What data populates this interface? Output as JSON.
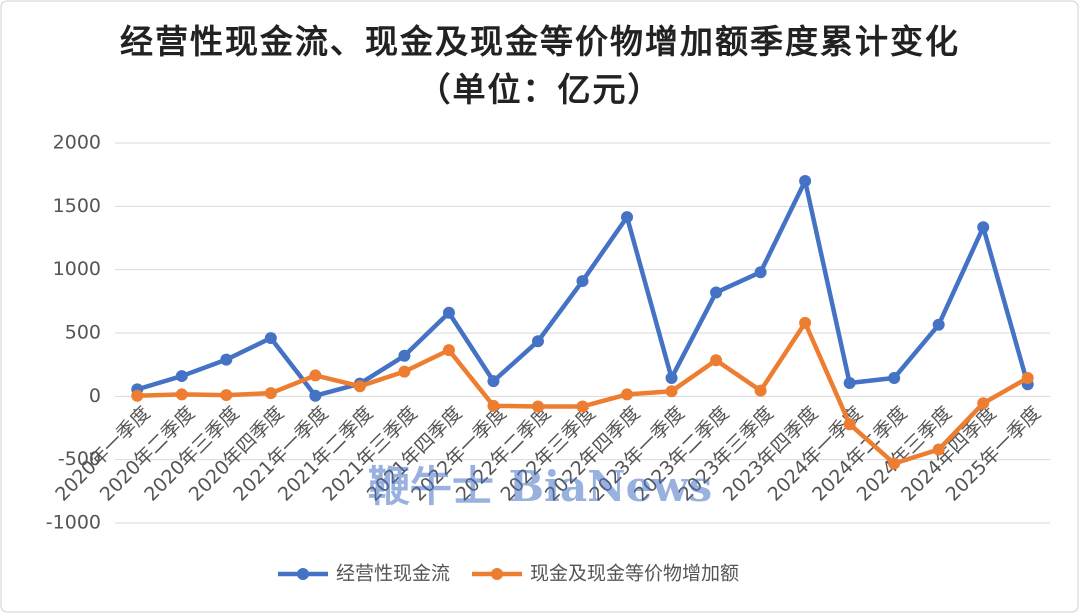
{
  "chart_data": {
    "type": "line",
    "title": "经营性现金流、现金及现金等价物增加额季度累计变化（单位：亿元）",
    "annotation": "鞭牛士 BiaNews",
    "categories": [
      "2020年一季度",
      "2020年二季度",
      "2020年三季度",
      "2020年四季度",
      "2021年一季度",
      "2021年二季度",
      "2021年三季度",
      "2021年四季度",
      "2022年一季度",
      "2022年二季度",
      "2022年三季度",
      "2022年四季度",
      "2023年一季度",
      "2023年二季度",
      "2023年三季度",
      "2023年四季度",
      "2024年一季度",
      "2024年二季度",
      "2024年三季度",
      "2024年四季度",
      "2025年一季度"
    ],
    "series": [
      {
        "name": "经营性现金流",
        "color": "#4472c4",
        "values": [
          55,
          160,
          290,
          460,
          5,
          100,
          320,
          660,
          120,
          435,
          910,
          1415,
          145,
          820,
          980,
          1700,
          105,
          145,
          565,
          1335,
          95
        ]
      },
      {
        "name": "现金及现金等价物增加额",
        "color": "#ed7d31",
        "values": [
          5,
          15,
          10,
          25,
          165,
          80,
          195,
          365,
          -75,
          -80,
          -80,
          15,
          40,
          285,
          45,
          580,
          -220,
          -530,
          -420,
          -55,
          145
        ]
      }
    ],
    "ylim": [
      -1000,
      2000
    ],
    "yticks": [
      -1000,
      -500,
      0,
      500,
      1000,
      1500,
      2000
    ],
    "grid": true,
    "legend": "bottom"
  }
}
